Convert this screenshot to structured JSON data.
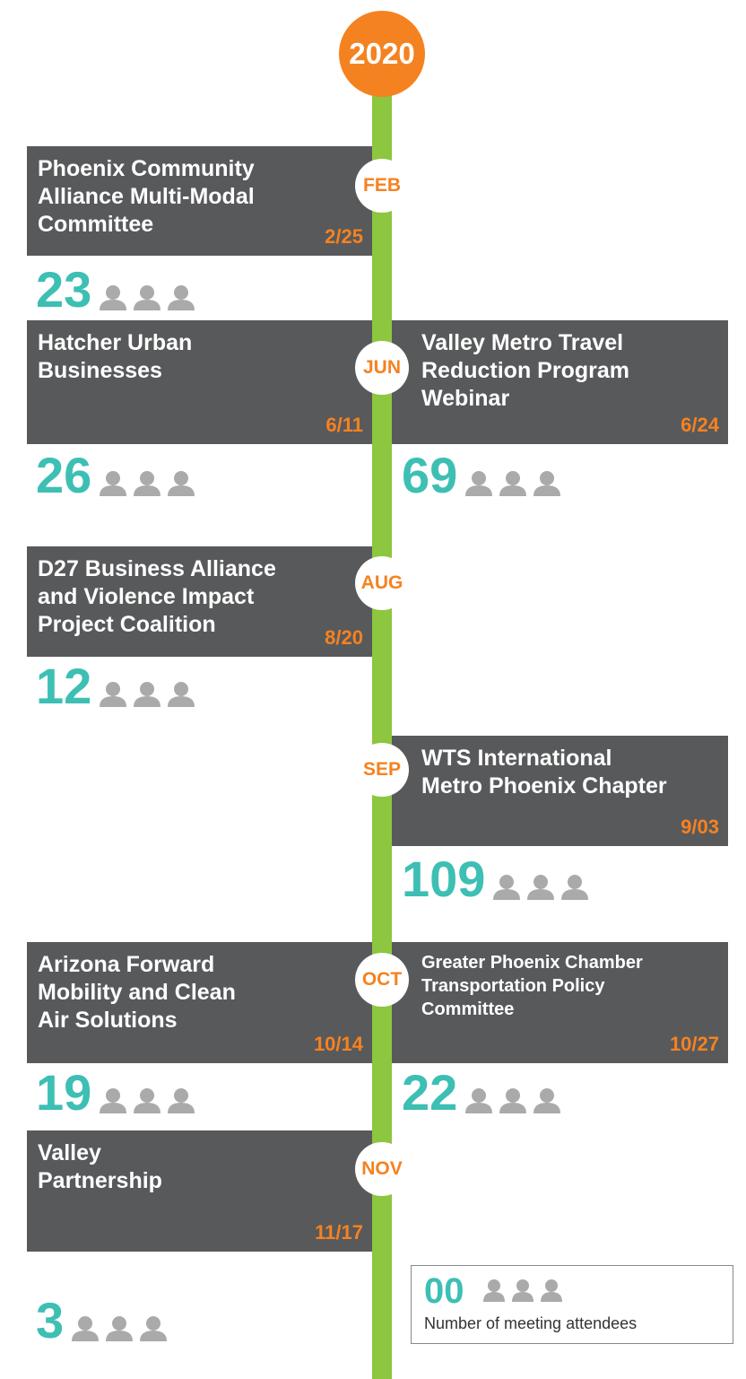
{
  "year": "2020",
  "months": [
    {
      "month": "FEB",
      "left": {
        "title_lines": [
          "Phoenix Community",
          "Alliance Multi-Modal",
          "Committee"
        ],
        "date": "2/25",
        "attendees": "23"
      }
    },
    {
      "month": "JUN",
      "left": {
        "title_lines": [
          "Hatcher Urban",
          "Businesses"
        ],
        "date": "6/11",
        "attendees": "26"
      },
      "right": {
        "title_lines": [
          "Valley Metro Travel",
          "Reduction Program",
          "Webinar"
        ],
        "date": "6/24",
        "attendees": "69"
      }
    },
    {
      "month": "AUG",
      "left": {
        "title_lines": [
          "D27 Business Alliance",
          "and Violence Impact",
          "Project Coalition"
        ],
        "date": "8/20",
        "attendees": "12"
      }
    },
    {
      "month": "SEP",
      "right": {
        "title_lines": [
          "WTS International",
          "Metro Phoenix Chapter"
        ],
        "date": "9/03",
        "attendees": "109"
      }
    },
    {
      "month": "OCT",
      "left": {
        "title_lines": [
          "Arizona Forward",
          "Mobility and Clean",
          "Air Solutions"
        ],
        "date": "10/14",
        "attendees": "19"
      },
      "right": {
        "title_lines": [
          "Greater Phoenix Chamber",
          "Transportation Policy",
          "Committee"
        ],
        "date": "10/27",
        "attendees": "22"
      }
    },
    {
      "month": "NOV",
      "left": {
        "title_lines": [
          "Valley",
          "Partnership"
        ],
        "date": "11/17",
        "attendees": "3"
      }
    }
  ],
  "legend": {
    "number": "00",
    "text": "Number of meeting attendees"
  }
}
